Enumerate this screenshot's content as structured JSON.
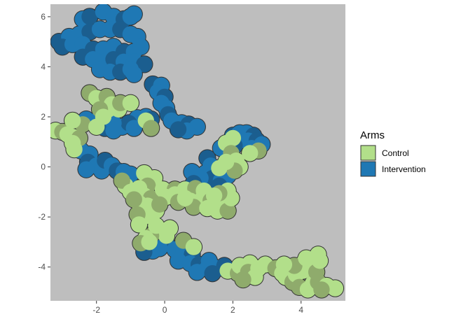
{
  "chart_data": {
    "type": "map",
    "title": "",
    "xlabel": "",
    "ylabel": "",
    "xlim": [
      -3.35,
      5.3
    ],
    "ylim": [
      -5.35,
      6.5
    ],
    "x_ticks": [
      -2,
      0,
      2,
      4
    ],
    "y_ticks": [
      -4,
      -2,
      0,
      2,
      4,
      6
    ],
    "x_tick_labels": [
      "-2",
      "0",
      "2",
      "4"
    ],
    "y_tick_labels": [
      "-4",
      "-2",
      "0",
      "2",
      "4",
      "6"
    ],
    "grid": false,
    "panel_background": "#bebebe",
    "legend": {
      "title": "Arms",
      "position": "right",
      "entries": [
        {
          "label": "Control",
          "color": "#b2df8a"
        },
        {
          "label": "Intervention",
          "color": "#1f78b4"
        }
      ]
    },
    "colors": {
      "control": "#b2df8a",
      "control_dark": "#8fab6c",
      "intervention": "#1f78b4",
      "intervention_dark": "#1b5e8f",
      "outline": "#333333"
    },
    "series": [
      {
        "name": "Intervention",
        "color": "#1f78b4",
        "points": [
          [
            -2.4,
            5.9
          ],
          [
            -2.2,
            6.0
          ],
          [
            -1.8,
            6.2
          ],
          [
            -1.5,
            6.0
          ],
          [
            -1.2,
            5.9
          ],
          [
            -1.0,
            6.0
          ],
          [
            -0.9,
            6.1
          ],
          [
            -3.1,
            5.0
          ],
          [
            -2.8,
            5.2
          ],
          [
            -2.5,
            5.3
          ],
          [
            -2.2,
            5.4
          ],
          [
            -1.9,
            5.5
          ],
          [
            -1.6,
            5.5
          ],
          [
            -1.3,
            5.5
          ],
          [
            -1.0,
            5.3
          ],
          [
            -0.8,
            5.2
          ],
          [
            -3.0,
            4.8
          ],
          [
            -2.7,
            4.9
          ],
          [
            -2.4,
            4.9
          ],
          [
            -2.1,
            4.7
          ],
          [
            -1.8,
            4.7
          ],
          [
            -1.5,
            4.8
          ],
          [
            -1.2,
            4.6
          ],
          [
            -0.9,
            4.6
          ],
          [
            -0.7,
            4.8
          ],
          [
            -2.4,
            4.4
          ],
          [
            -2.1,
            4.3
          ],
          [
            -1.8,
            4.2
          ],
          [
            -1.5,
            4.3
          ],
          [
            -1.2,
            4.2
          ],
          [
            -0.9,
            4.2
          ],
          [
            -0.6,
            4.1
          ],
          [
            -1.9,
            3.9
          ],
          [
            -1.6,
            3.8
          ],
          [
            -1.3,
            3.8
          ],
          [
            -1.0,
            3.9
          ],
          [
            -0.9,
            3.7
          ],
          [
            -0.35,
            3.3
          ],
          [
            -0.1,
            3.25
          ],
          [
            -0.2,
            3.0
          ],
          [
            0.0,
            2.8
          ],
          [
            -0.1,
            2.55
          ],
          [
            0.05,
            2.35
          ],
          [
            0.1,
            2.1
          ],
          [
            -0.8,
            1.95
          ],
          [
            -0.55,
            2.0
          ],
          [
            -0.4,
            1.9
          ],
          [
            0.2,
            1.85
          ],
          [
            0.5,
            1.75
          ],
          [
            0.7,
            1.7
          ],
          [
            0.95,
            1.6
          ],
          [
            0.65,
            1.45
          ],
          [
            0.4,
            1.5
          ],
          [
            -2.3,
            1.9
          ],
          [
            -2.1,
            1.8
          ],
          [
            -1.75,
            1.55
          ],
          [
            -1.5,
            1.45
          ],
          [
            -1.25,
            1.6
          ],
          [
            -1.05,
            1.75
          ],
          [
            -0.9,
            1.55
          ],
          [
            -1.5,
            1.75
          ],
          [
            2.0,
            1.25
          ],
          [
            2.2,
            1.35
          ],
          [
            2.4,
            1.35
          ],
          [
            2.6,
            1.25
          ],
          [
            2.2,
            1.05
          ],
          [
            2.45,
            1.05
          ],
          [
            2.7,
            1.05
          ],
          [
            1.65,
            0.75
          ],
          [
            1.85,
            0.65
          ],
          [
            2.05,
            0.85
          ],
          [
            2.55,
            0.75
          ],
          [
            2.85,
            0.9
          ],
          [
            1.25,
            0.35
          ],
          [
            1.35,
            0.05
          ],
          [
            1.2,
            -0.25
          ],
          [
            1.4,
            -0.45
          ],
          [
            1.65,
            -0.55
          ],
          [
            1.85,
            -0.35
          ],
          [
            1.6,
            -0.75
          ],
          [
            1.05,
            -0.45
          ],
          [
            0.8,
            -0.2
          ],
          [
            0.85,
            -0.65
          ],
          [
            -2.45,
            0.65
          ],
          [
            -2.2,
            0.5
          ],
          [
            -2.25,
            0.2
          ],
          [
            -2.0,
            0.05
          ],
          [
            -1.85,
            -0.15
          ],
          [
            -1.75,
            0.25
          ],
          [
            -1.55,
            0.05
          ],
          [
            -2.3,
            -0.1
          ],
          [
            -1.4,
            -0.15
          ],
          [
            -1.2,
            -0.2
          ],
          [
            -1.0,
            -0.3
          ],
          [
            0.05,
            -3.05
          ],
          [
            -0.15,
            -3.25
          ],
          [
            -0.35,
            -3.35
          ],
          [
            -0.6,
            -3.4
          ],
          [
            0.3,
            -3.3
          ],
          [
            0.55,
            -3.35
          ],
          [
            0.8,
            -3.5
          ],
          [
            0.4,
            -3.75
          ],
          [
            0.75,
            -3.85
          ],
          [
            1.0,
            -3.9
          ],
          [
            1.25,
            -4.05
          ],
          [
            1.55,
            -4.05
          ],
          [
            1.75,
            -3.95
          ],
          [
            1.3,
            -3.75
          ],
          [
            0.95,
            -4.2
          ],
          [
            1.4,
            -4.25
          ]
        ]
      },
      {
        "name": "Control",
        "color": "#b2df8a",
        "points": [
          [
            -3.2,
            1.45
          ],
          [
            -3.0,
            1.4
          ],
          [
            -2.85,
            1.3
          ],
          [
            -2.7,
            1.2
          ],
          [
            -2.5,
            1.15
          ],
          [
            -2.7,
            0.95
          ],
          [
            -2.65,
            0.7
          ],
          [
            -2.4,
            1.7
          ],
          [
            -2.0,
            1.6
          ],
          [
            -2.7,
            1.85
          ],
          [
            -2.2,
            2.95
          ],
          [
            -2.0,
            2.75
          ],
          [
            -1.85,
            2.55
          ],
          [
            -1.7,
            2.8
          ],
          [
            -1.55,
            2.5
          ],
          [
            -1.65,
            2.3
          ],
          [
            -1.9,
            2.3
          ],
          [
            -1.35,
            2.3
          ],
          [
            -1.8,
            2.0
          ],
          [
            -1.3,
            2.55
          ],
          [
            -1.0,
            2.55
          ],
          [
            -0.55,
            1.85
          ],
          [
            -0.4,
            1.55
          ],
          [
            -0.6,
            -0.25
          ],
          [
            -0.3,
            -0.45
          ],
          [
            -0.5,
            -0.75
          ],
          [
            -0.75,
            -0.85
          ],
          [
            -1.15,
            -0.75
          ],
          [
            -1.25,
            -0.55
          ],
          [
            -1.0,
            -1.0
          ],
          [
            -0.6,
            -1.15
          ],
          [
            -0.4,
            -1.25
          ],
          [
            -0.5,
            -1.55
          ],
          [
            -0.75,
            -1.45
          ],
          [
            -0.9,
            -1.3
          ],
          [
            -0.25,
            -1.75
          ],
          [
            -0.5,
            -1.95
          ],
          [
            -0.8,
            -1.9
          ],
          [
            -0.75,
            -2.3
          ],
          [
            -0.05,
            -0.9
          ],
          [
            0.3,
            -0.9
          ],
          [
            0.3,
            -1.1
          ],
          [
            0.6,
            -0.9
          ],
          [
            0.9,
            -0.85
          ],
          [
            1.15,
            -0.95
          ],
          [
            0.05,
            -1.2
          ],
          [
            0.4,
            -1.4
          ],
          [
            0.75,
            -1.35
          ],
          [
            1.05,
            -1.35
          ],
          [
            1.35,
            -1.35
          ],
          [
            1.55,
            -1.45
          ],
          [
            1.75,
            -1.3
          ],
          [
            0.85,
            -1.6
          ],
          [
            1.25,
            -1.65
          ],
          [
            1.55,
            -1.75
          ],
          [
            1.85,
            -1.75
          ],
          [
            1.95,
            -1.25
          ],
          [
            1.85,
            -0.95
          ],
          [
            1.6,
            -1.05
          ],
          [
            0.6,
            -1.25
          ],
          [
            1.45,
            -1.15
          ],
          [
            -0.15,
            -1.5
          ],
          [
            -0.2,
            -2.45
          ],
          [
            0.05,
            -2.75
          ],
          [
            -0.4,
            -2.75
          ],
          [
            -0.25,
            -2.35
          ],
          [
            -0.55,
            -2.85
          ],
          [
            -0.7,
            -3.05
          ],
          [
            -0.45,
            -3.0
          ],
          [
            0.15,
            -2.45
          ],
          [
            0.55,
            -2.95
          ],
          [
            0.85,
            -3.2
          ],
          [
            1.85,
            -4.15
          ],
          [
            2.15,
            -4.25
          ],
          [
            2.2,
            -3.95
          ],
          [
            2.5,
            -3.85
          ],
          [
            2.45,
            -4.2
          ],
          [
            2.75,
            -4.05
          ],
          [
            2.65,
            -4.4
          ],
          [
            2.3,
            -4.5
          ],
          [
            2.0,
            1.15
          ],
          [
            1.8,
            0.95
          ],
          [
            1.95,
            0.55
          ],
          [
            2.1,
            0.25
          ],
          [
            2.2,
            0.0
          ],
          [
            2.05,
            -0.15
          ],
          [
            1.8,
            0.2
          ],
          [
            1.6,
            -0.05
          ],
          [
            2.75,
            0.65
          ],
          [
            2.5,
            0.55
          ],
          [
            2.95,
            -3.9
          ],
          [
            3.25,
            -4.05
          ],
          [
            3.45,
            -4.25
          ],
          [
            3.55,
            -4.4
          ],
          [
            3.75,
            -4.6
          ],
          [
            3.85,
            -4.3
          ],
          [
            4.05,
            -4.15
          ],
          [
            3.95,
            -4.8
          ],
          [
            4.2,
            -4.9
          ],
          [
            4.35,
            -4.65
          ],
          [
            4.5,
            -4.6
          ],
          [
            4.75,
            -4.75
          ],
          [
            5.0,
            -4.85
          ],
          [
            4.6,
            -4.9
          ],
          [
            4.3,
            -4.05
          ],
          [
            4.1,
            -3.8
          ],
          [
            3.8,
            -3.95
          ],
          [
            3.5,
            -3.9
          ],
          [
            4.15,
            -3.65
          ],
          [
            4.45,
            -4.2
          ],
          [
            4.55,
            -3.75
          ],
          [
            4.5,
            -3.5
          ]
        ]
      }
    ]
  }
}
